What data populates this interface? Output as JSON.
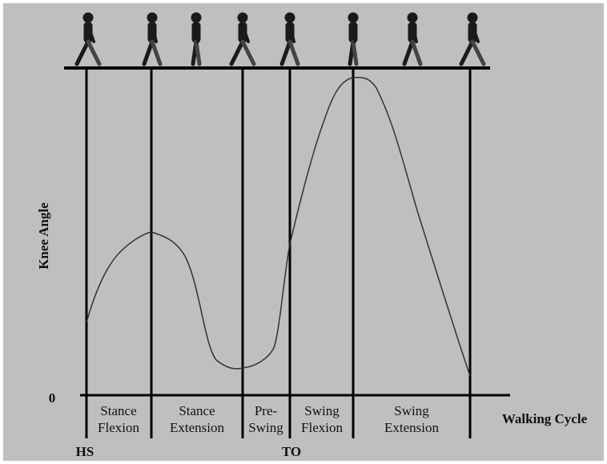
{
  "y_axis_label": "Knee Angle",
  "zero_label": "0",
  "x_axis_label": "Walking Cycle",
  "phases": [
    {
      "lines": [
        "Stance",
        "Flexion"
      ]
    },
    {
      "lines": [
        "Stance",
        "Extension"
      ]
    },
    {
      "lines": [
        "Pre-",
        "Swing"
      ]
    },
    {
      "lines": [
        "Swing",
        "Flexion"
      ]
    },
    {
      "lines": [
        "Swing",
        "Extension"
      ]
    }
  ],
  "events": [
    "HS",
    "TO"
  ]
}
